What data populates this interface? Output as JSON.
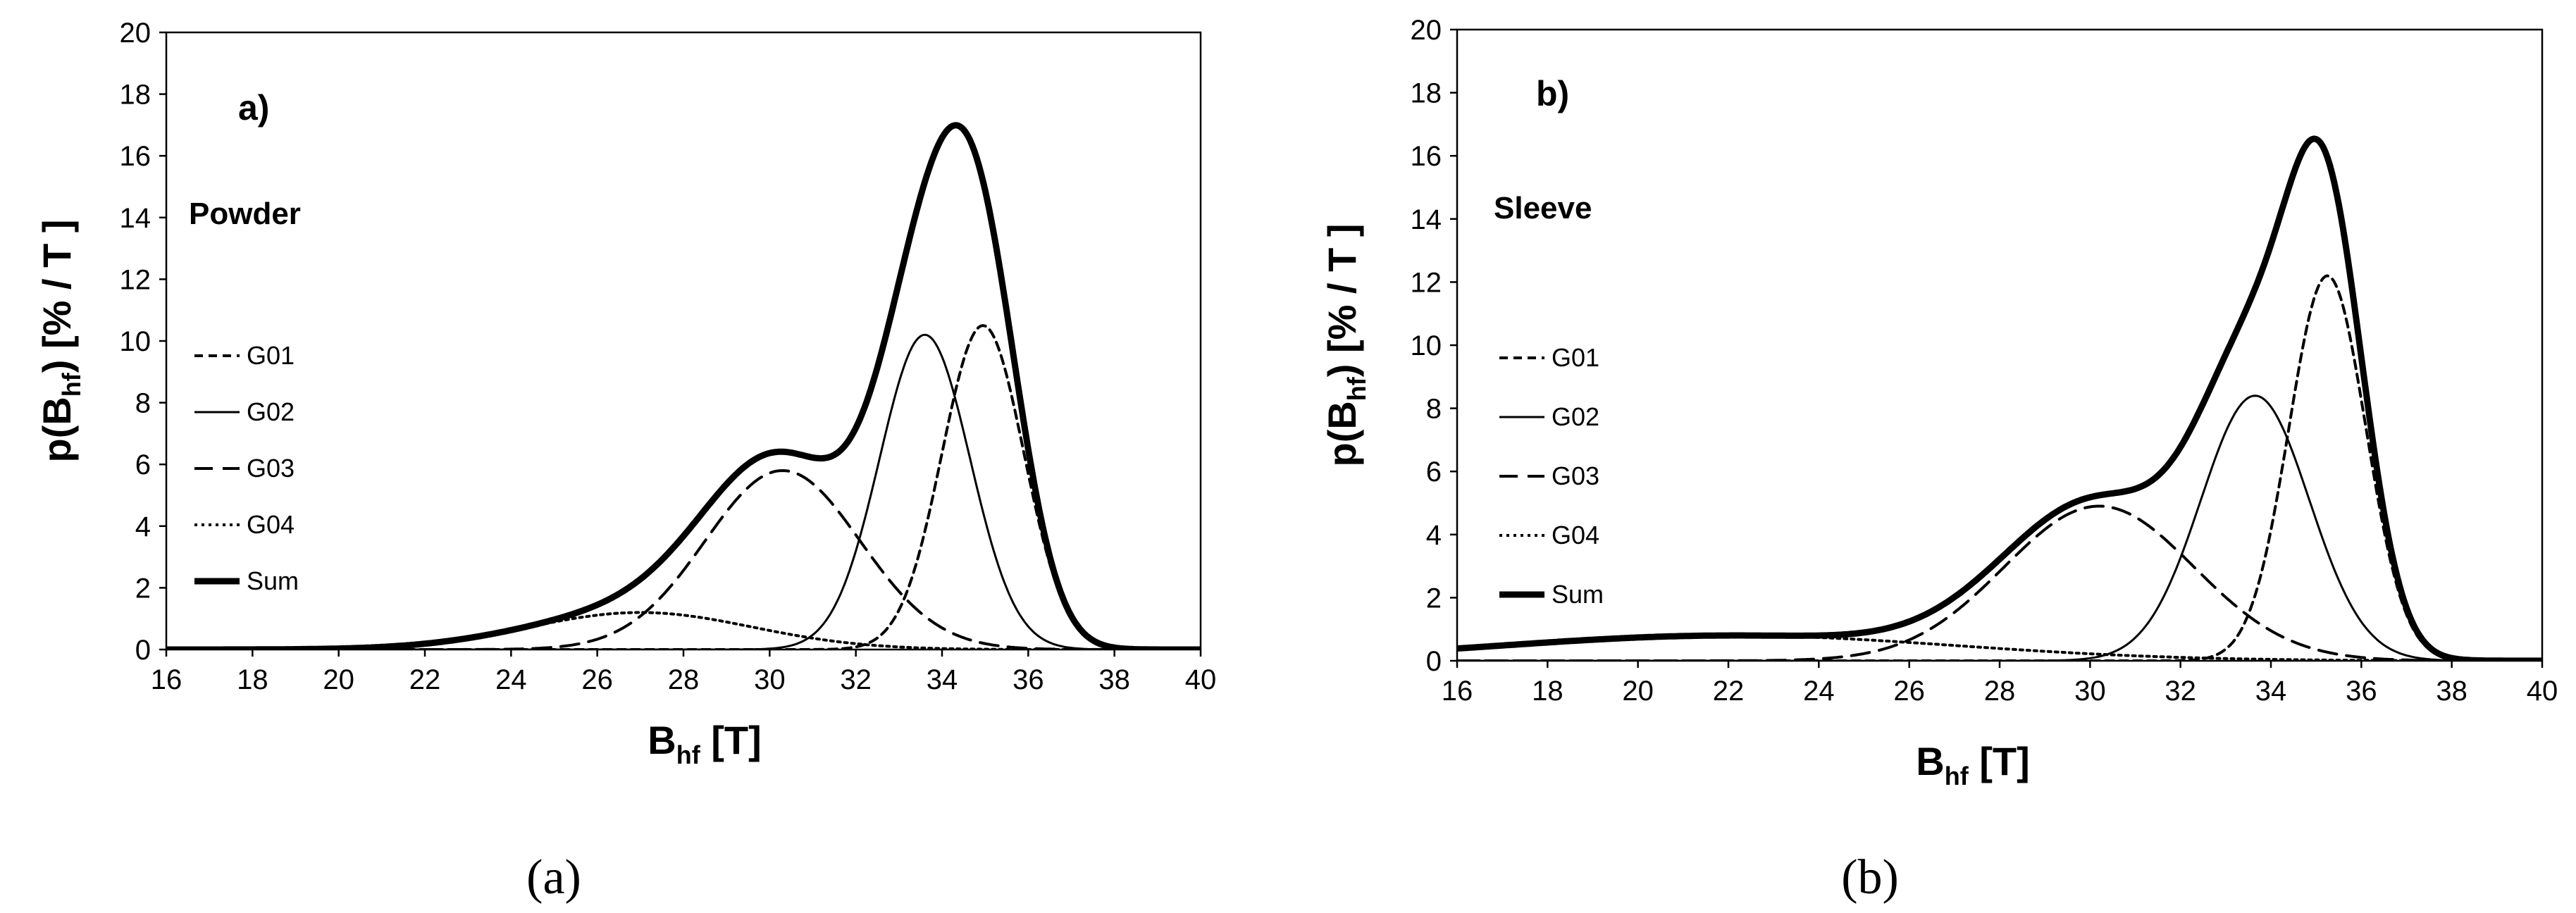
{
  "chart_data": [
    {
      "type": "line",
      "panel_letter": "a)",
      "sample_label": "Powder",
      "caption": "(a)",
      "xlabel": {
        "main": "B",
        "sub": "hf",
        "unit": " [T]"
      },
      "ylabel": {
        "main": "p(B",
        "sub": "hf",
        "unit": ")  [% / T ]"
      },
      "xlim": [
        16,
        40
      ],
      "ylim": [
        0,
        20
      ],
      "x_ticks": [
        16,
        18,
        20,
        22,
        24,
        26,
        28,
        30,
        32,
        34,
        36,
        38,
        40
      ],
      "y_ticks": [
        0,
        2,
        4,
        6,
        8,
        10,
        12,
        14,
        16,
        18,
        20
      ],
      "legend": [
        "G01",
        "G02",
        "G03",
        "G04",
        "Sum"
      ],
      "components": [
        {
          "name": "G01",
          "style": "short-dash",
          "amp": 10.5,
          "center": 34.95,
          "width": 0.95
        },
        {
          "name": "G02",
          "style": "solid",
          "amp": 10.2,
          "center": 33.6,
          "width": 1.05
        },
        {
          "name": "G03",
          "style": "dash",
          "amp": 5.8,
          "center": 30.3,
          "width": 1.8
        },
        {
          "name": "G04",
          "style": "dotted",
          "amp": 1.2,
          "center": 27.0,
          "width": 2.6
        }
      ],
      "sum": {
        "name": "Sum",
        "style": "thick-solid"
      }
    },
    {
      "type": "line",
      "panel_letter": "b)",
      "sample_label": "Sleeve",
      "caption": "(b)",
      "xlabel": {
        "main": "B",
        "sub": "hf",
        "unit": " [T]"
      },
      "ylabel": {
        "main": "p(B",
        "sub": "hf",
        "unit": ")  [% / T ]"
      },
      "xlim": [
        16,
        40
      ],
      "ylim": [
        0,
        20
      ],
      "x_ticks": [
        16,
        18,
        20,
        22,
        24,
        26,
        28,
        30,
        32,
        34,
        36,
        38,
        40
      ],
      "y_ticks": [
        0,
        2,
        4,
        6,
        8,
        10,
        12,
        14,
        16,
        18,
        20
      ],
      "legend": [
        "G01",
        "G02",
        "G03",
        "G04",
        "Sum"
      ],
      "components": [
        {
          "name": "G01",
          "style": "short-dash",
          "amp": 12.2,
          "center": 35.25,
          "width": 0.85
        },
        {
          "name": "G02",
          "style": "solid",
          "amp": 8.4,
          "center": 33.65,
          "width": 1.2
        },
        {
          "name": "G03",
          "style": "dash",
          "amp": 4.9,
          "center": 30.2,
          "width": 2.1
        },
        {
          "name": "G04",
          "style": "dotted",
          "amp": 0.8,
          "center": 22.0,
          "width": 5.0
        }
      ],
      "sum": {
        "name": "Sum",
        "style": "thick-solid"
      }
    }
  ]
}
